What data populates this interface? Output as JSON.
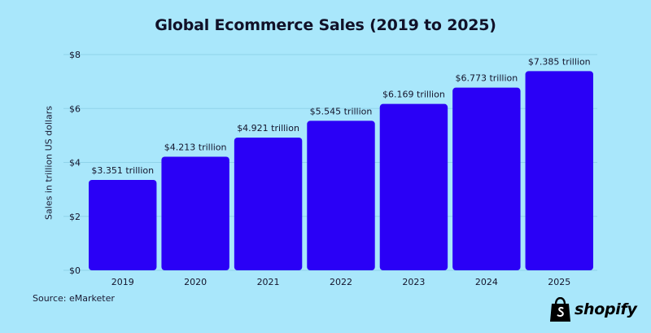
{
  "colors": {
    "background": "#a9e7fb",
    "bar": "#2a00f6",
    "grid": "#8fd3ea",
    "text": "#14142b"
  },
  "chart_data": {
    "type": "bar",
    "title": "Global Ecommerce Sales (2019 to 2025)",
    "xlabel": "",
    "ylabel": "Sales in trillion US dollars",
    "categories": [
      "2019",
      "2020",
      "2021",
      "2022",
      "2023",
      "2024",
      "2025"
    ],
    "values": [
      3.351,
      4.213,
      4.921,
      5.545,
      6.169,
      6.773,
      7.385
    ],
    "data_labels": [
      "$3.351 trillion",
      "$4.213 trillion",
      "$4.921 trillion",
      "$5.545 trillion",
      "$6.169 trillion",
      "$6.773 trillion",
      "$7.385 trillion"
    ],
    "ylim": [
      0,
      8
    ],
    "yticks": [
      0,
      2,
      4,
      6,
      8
    ],
    "ytick_labels": [
      "$0",
      "$2",
      "$4",
      "$6",
      "$8"
    ],
    "grid": true,
    "legend": "none"
  },
  "source": "Source: eMarketer",
  "brand": {
    "name": "shopify",
    "icon": "shopify-bag-icon"
  }
}
